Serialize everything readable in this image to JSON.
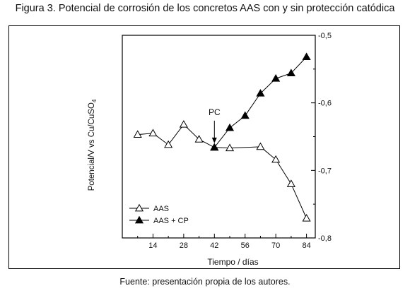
{
  "figure": {
    "title": "Figura 3. Potencial de corrosión de los concretos AAS con y sin protección catódica",
    "source": "Fuente: presentación propia de los autores."
  },
  "chart_data": {
    "type": "line",
    "xlabel": "Tiempo / días",
    "ylabel_main": "Potencial/V vs Cu/CuSO",
    "ylabel_sub": "4",
    "xlim": [
      0,
      88
    ],
    "ylim": [
      -0.8,
      -0.5
    ],
    "x_ticks": [
      14,
      28,
      42,
      56,
      70,
      84
    ],
    "y_ticks": [
      -0.5,
      -0.6,
      -0.7,
      -0.8
    ],
    "y_tick_labels": [
      "-0,5",
      "-0,6",
      "-0,7",
      "-0,8"
    ],
    "y_axis_side": "right",
    "legend_position": "bottom-left",
    "series": [
      {
        "name": "AAS",
        "marker": "open-triangle",
        "x": [
          7,
          14,
          21,
          28,
          35,
          42,
          49,
          63,
          70,
          77,
          84
        ],
        "y": [
          -0.647,
          -0.645,
          -0.662,
          -0.632,
          -0.654,
          -0.666,
          -0.667,
          -0.665,
          -0.684,
          -0.72,
          -0.771
        ]
      },
      {
        "name": "AAS + CP",
        "marker": "filled-triangle",
        "x": [
          42,
          49,
          56,
          63,
          70,
          77,
          84
        ],
        "y": [
          -0.666,
          -0.637,
          -0.619,
          -0.586,
          -0.564,
          -0.556,
          -0.532
        ]
      }
    ],
    "annotation": {
      "text": "PC",
      "x": 42,
      "arrow_to_y": -0.664
    }
  }
}
